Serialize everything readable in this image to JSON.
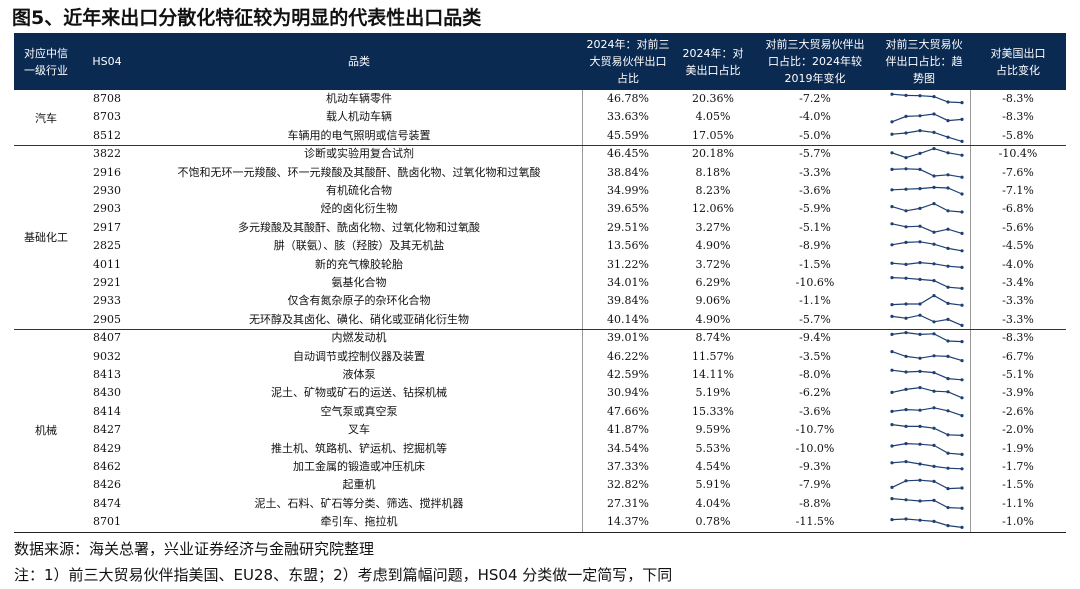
{
  "title": "图5、近年来出口分散化特征较为明显的代表性出口品类",
  "header": {
    "industry": [
      "对应中信",
      "一级行业"
    ],
    "code": [
      "HS04"
    ],
    "name": [
      "品类"
    ],
    "col_a": [
      "2024年：对前三",
      "大贸易伙伴出口",
      "占比"
    ],
    "col_b": [
      "2024年：对",
      "美出口占比"
    ],
    "col_c": [
      "对前三大贸易伙伴出",
      "口占比：2024年较",
      "2019年变化"
    ],
    "col_d": [
      "对前三大贸易伙",
      "伴出口占比：趋",
      "势图"
    ],
    "col_e": [
      "对美国出口",
      "占比变化"
    ]
  },
  "groups": [
    {
      "name": "汽车",
      "rows": [
        {
          "code": "8708",
          "name": "机动车辆零件",
          "top3": "46.78%",
          "us": "20.36%",
          "chg": "-7.2%",
          "us_chg": "-8.3%",
          "trend": [
            0.8,
            0.6,
            0.55,
            0.4,
            -0.5,
            -0.6
          ]
        },
        {
          "code": "8703",
          "name": "载人机动车辆",
          "top3": "33.63%",
          "us": "4.05%",
          "chg": "-4.0%",
          "us_chg": "-8.3%",
          "trend": [
            -0.8,
            0.1,
            0.2,
            0.5,
            -0.6,
            -0.4
          ]
        },
        {
          "code": "8512",
          "name": "车辆用的电气照明或信号装置",
          "top3": "45.59%",
          "us": "17.05%",
          "chg": "-5.0%",
          "us_chg": "-5.8%",
          "trend": [
            0.3,
            0.5,
            0.9,
            0.6,
            -0.2,
            -0.9
          ]
        }
      ]
    },
    {
      "name": "基础化工",
      "rows": [
        {
          "code": "3822",
          "name": "诊断或实验用复合试剂",
          "top3": "46.45%",
          "us": "20.18%",
          "chg": "-5.7%",
          "us_chg": "-10.4%",
          "trend": [
            0.2,
            -0.6,
            0.1,
            0.9,
            0.2,
            -0.2
          ]
        },
        {
          "code": "2916",
          "name": "不饱和无环一元羧酸、环一元羧酸及其酸酐、酰卤化物、过氧化物和过氧酸",
          "top3": "38.84%",
          "us": "8.18%",
          "chg": "-3.3%",
          "us_chg": "-7.6%",
          "trend": [
            0.6,
            0.7,
            0.6,
            -0.5,
            -0.3,
            -0.7
          ]
        },
        {
          "code": "2930",
          "name": "有机硫化合物",
          "top3": "34.99%",
          "us": "8.23%",
          "chg": "-3.6%",
          "us_chg": "-7.1%",
          "trend": [
            0.2,
            0.3,
            0.4,
            0.6,
            0.5,
            -0.5
          ]
        },
        {
          "code": "2903",
          "name": "烃的卤化衍生物",
          "top3": "39.65%",
          "us": "12.06%",
          "chg": "-5.9%",
          "us_chg": "-6.8%",
          "trend": [
            0.4,
            -0.3,
            0.1,
            0.9,
            -0.3,
            -0.5
          ]
        },
        {
          "code": "2917",
          "name": "多元羧酸及其酸酐、酰卤化物、过氧化物和过氧酸",
          "top3": "29.51%",
          "us": "3.27%",
          "chg": "-5.1%",
          "us_chg": "-5.6%",
          "trend": [
            0.7,
            0.2,
            0.3,
            -0.7,
            -0.2,
            -0.9
          ]
        },
        {
          "code": "2825",
          "name": "肼（联氨）、胲（羟胺）及其无机盐",
          "top3": "13.56%",
          "us": "4.90%",
          "chg": "-8.9%",
          "us_chg": "-4.5%",
          "trend": [
            0.2,
            0.6,
            0.7,
            0.3,
            -0.4,
            -0.8
          ]
        },
        {
          "code": "4011",
          "name": "新的充气橡胶轮胎",
          "top3": "31.22%",
          "us": "3.72%",
          "chg": "-1.5%",
          "us_chg": "-4.0%",
          "trend": [
            0.3,
            0.1,
            0.4,
            0.2,
            -0.2,
            -0.4
          ]
        },
        {
          "code": "2921",
          "name": "氨基化合物",
          "top3": "34.01%",
          "us": "6.29%",
          "chg": "-10.6%",
          "us_chg": "-3.4%",
          "trend": [
            0.9,
            0.8,
            0.6,
            0.4,
            -0.7,
            -0.9
          ]
        },
        {
          "code": "2933",
          "name": "仅含有氮杂原子的杂环化合物",
          "top3": "39.84%",
          "us": "9.06%",
          "chg": "-1.1%",
          "us_chg": "-3.3%",
          "trend": [
            -0.6,
            -0.5,
            -0.5,
            0.9,
            -0.4,
            -0.7
          ]
        },
        {
          "code": "2905",
          "name": "无环醇及其卤化、磺化、硝化或亚硝化衍生物",
          "top3": "40.14%",
          "us": "4.90%",
          "chg": "-5.7%",
          "us_chg": "-3.3%",
          "trend": [
            0.6,
            0.3,
            0.8,
            -0.3,
            0.1,
            -0.9
          ]
        }
      ]
    },
    {
      "name": "机械",
      "rows": [
        {
          "code": "8407",
          "name": "内燃发动机",
          "top3": "39.01%",
          "us": "8.74%",
          "chg": "-9.4%",
          "us_chg": "-8.3%",
          "trend": [
            0.6,
            0.9,
            0.6,
            0.7,
            -0.5,
            -0.6
          ]
        },
        {
          "code": "9032",
          "name": "自动调节或控制仪器及装置",
          "top3": "46.22%",
          "us": "11.57%",
          "chg": "-3.5%",
          "us_chg": "-6.7%",
          "trend": [
            0.9,
            0.1,
            -0.2,
            0.2,
            0.1,
            -0.6
          ]
        },
        {
          "code": "8413",
          "name": "液体泵",
          "top3": "42.59%",
          "us": "14.11%",
          "chg": "-8.0%",
          "us_chg": "-5.1%",
          "trend": [
            0.8,
            0.5,
            0.6,
            0.4,
            -0.6,
            -0.8
          ]
        },
        {
          "code": "8430",
          "name": "泥土、矿物或矿石的运送、钻探机械",
          "top3": "30.94%",
          "us": "5.19%",
          "chg": "-6.2%",
          "us_chg": "-3.9%",
          "trend": [
            0.1,
            0.6,
            0.9,
            0.3,
            0.2,
            -0.8
          ]
        },
        {
          "code": "8414",
          "name": "空气泵或真空泵",
          "top3": "47.66%",
          "us": "15.33%",
          "chg": "-3.6%",
          "us_chg": "-2.6%",
          "trend": [
            0.1,
            0.4,
            0.3,
            0.7,
            0.2,
            -0.6
          ]
        },
        {
          "code": "8427",
          "name": "叉车",
          "top3": "41.87%",
          "us": "9.59%",
          "chg": "-10.7%",
          "us_chg": "-2.0%",
          "trend": [
            0.9,
            0.6,
            0.6,
            0.3,
            -0.8,
            -0.9
          ]
        },
        {
          "code": "8429",
          "name": "推土机、筑路机、铲运机、挖掘机等",
          "top3": "34.54%",
          "us": "5.53%",
          "chg": "-10.0%",
          "us_chg": "-1.9%",
          "trend": [
            0.5,
            0.9,
            0.8,
            0.6,
            -0.7,
            -0.9
          ]
        },
        {
          "code": "8462",
          "name": "加工金属的锻造或冲压机床",
          "top3": "37.33%",
          "us": "4.54%",
          "chg": "-9.3%",
          "us_chg": "-1.7%",
          "trend": [
            0.7,
            0.9,
            0.5,
            0.1,
            -0.2,
            -0.3
          ]
        },
        {
          "code": "8426",
          "name": "起重机",
          "top3": "32.82%",
          "us": "5.91%",
          "chg": "-7.9%",
          "us_chg": "-1.5%",
          "trend": [
            -0.4,
            0.7,
            0.8,
            0.6,
            -0.6,
            -0.5
          ]
        },
        {
          "code": "8474",
          "name": "泥土、石料、矿石等分类、筛选、搅拌机器",
          "top3": "27.31%",
          "us": "4.04%",
          "chg": "-8.8%",
          "us_chg": "-1.1%",
          "trend": [
            0.9,
            0.7,
            0.5,
            0.6,
            -0.6,
            -0.7
          ]
        },
        {
          "code": "8701",
          "name": "牵引车、拖拉机",
          "top3": "14.37%",
          "us": "0.78%",
          "chg": "-11.5%",
          "us_chg": "-1.0%",
          "trend": [
            0.4,
            0.5,
            0.3,
            0.1,
            -0.6,
            -0.9
          ]
        }
      ]
    }
  ],
  "source": "数据来源：海关总署，兴业证券经济与金融研究院整理",
  "note": "注：1）前三大贸易伙伴指美国、EU28、东盟；2）考虑到篇幅问题，HS04 分类做一定简写，下同"
}
